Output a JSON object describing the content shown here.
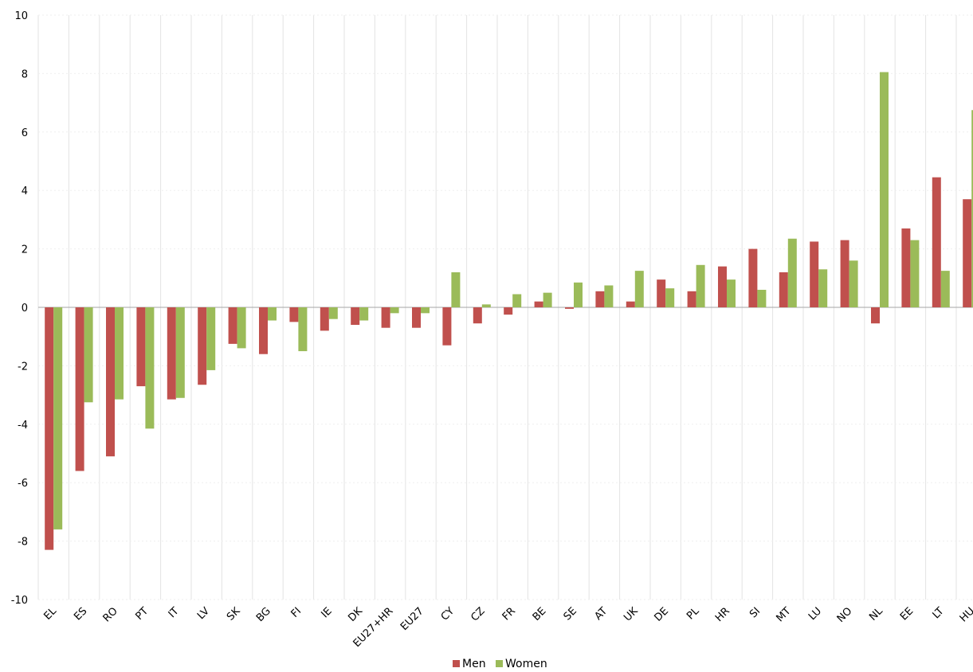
{
  "chart_data": {
    "type": "bar",
    "title": "",
    "xlabel": "",
    "ylabel": "",
    "categories": [
      "EL",
      "ES",
      "RO",
      "PT",
      "IT",
      "LV",
      "SK",
      "BG",
      "FI",
      "IE",
      "DK",
      "EU27+HR",
      "EU27",
      "CY",
      "CZ",
      "FR",
      "BE",
      "SE",
      "AT",
      "UK",
      "DE",
      "PL",
      "HR",
      "SI",
      "MT",
      "LU",
      "NO",
      "NL",
      "EE",
      "LT",
      "HU"
    ],
    "series": [
      {
        "name": "Men",
        "color": "#c0504d",
        "values": [
          -8.3,
          -5.6,
          -5.1,
          -2.7,
          -3.15,
          -2.65,
          -1.25,
          -1.6,
          -0.5,
          -0.8,
          -0.6,
          -0.7,
          -0.7,
          -1.3,
          -0.55,
          -0.25,
          0.2,
          -0.05,
          0.55,
          0.2,
          0.95,
          0.55,
          1.4,
          2.0,
          1.2,
          2.25,
          2.3,
          -0.55,
          2.7,
          4.45,
          3.7
        ]
      },
      {
        "name": "Women",
        "color": "#9bbb59",
        "values": [
          -7.6,
          -3.25,
          -3.15,
          -4.15,
          -3.1,
          -2.15,
          -1.4,
          -0.45,
          -1.5,
          -0.4,
          -0.45,
          -0.2,
          -0.2,
          1.2,
          0.1,
          0.45,
          0.5,
          0.85,
          0.75,
          1.25,
          0.65,
          1.45,
          0.95,
          0.6,
          2.35,
          1.3,
          1.6,
          8.05,
          2.3,
          1.25,
          6.75
        ]
      }
    ],
    "ylim": [
      -10,
      10
    ],
    "yticks": [
      -10,
      -8,
      -6,
      -4,
      -2,
      0,
      2,
      4,
      6,
      8,
      10
    ],
    "grid": true,
    "legend": "bottom-center"
  }
}
